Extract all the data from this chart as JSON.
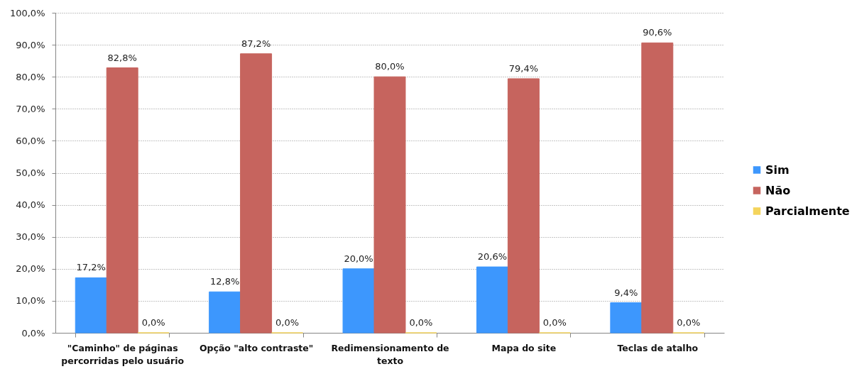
{
  "chart_data": {
    "type": "bar",
    "categories": [
      "\"Caminho\" de páginas percorridas pelo usuário",
      "Opção \"alto contraste\"",
      "Redimensionamento de texto",
      "Mapa do site",
      "Teclas de atalho"
    ],
    "series": [
      {
        "name": "Sim",
        "color": "#3d97fd",
        "values": [
          17.2,
          12.8,
          20.0,
          20.6,
          9.4
        ],
        "value_labels": [
          "17,2%",
          "12,8%",
          "20,0%",
          "20,6%",
          "9,4%"
        ]
      },
      {
        "name": "Não",
        "color": "#c6645e",
        "values": [
          82.8,
          87.2,
          80.0,
          79.4,
          90.6
        ],
        "value_labels": [
          "82,8%",
          "87,2%",
          "80,0%",
          "79,4%",
          "90,6%"
        ]
      },
      {
        "name": "Parcialmente",
        "color": "#f4d45c",
        "values": [
          0,
          0,
          0,
          0,
          0
        ],
        "value_labels": [
          "0,0%",
          "0,0%",
          "0,0%",
          "0,0%",
          "0,0%"
        ]
      }
    ],
    "ylim": [
      0,
      100
    ],
    "yticks": [
      {
        "value": 0,
        "label": "0,0%"
      },
      {
        "value": 10,
        "label": "10,0%"
      },
      {
        "value": 20,
        "label": "20,0%"
      },
      {
        "value": 30,
        "label": "30,0%"
      },
      {
        "value": 40,
        "label": "40,0%"
      },
      {
        "value": 50,
        "label": "50,0%"
      },
      {
        "value": 60,
        "label": "60,0%"
      },
      {
        "value": 70,
        "label": "70,0%"
      },
      {
        "value": 80,
        "label": "80,0%"
      },
      {
        "value": 90,
        "label": "90,0%"
      },
      {
        "value": 100,
        "label": "100,0%"
      }
    ],
    "grid": "y",
    "legend": "right"
  }
}
